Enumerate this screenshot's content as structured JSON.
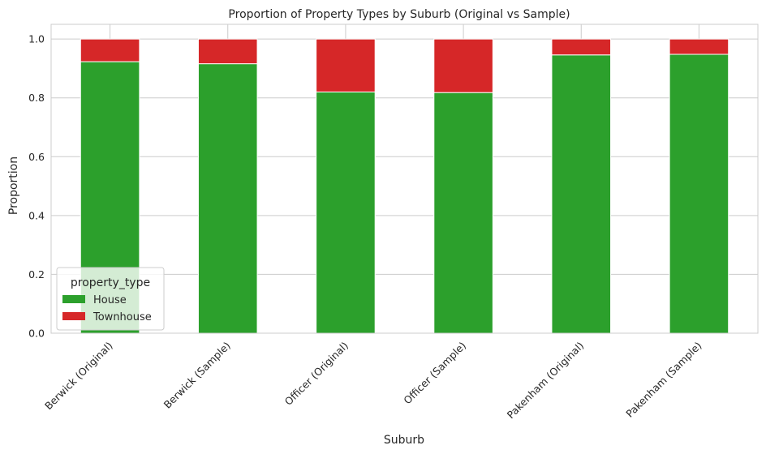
{
  "chart_data": {
    "type": "bar",
    "stacked": true,
    "title": "Proportion of Property Types by Suburb (Original vs Sample)",
    "xlabel": "Suburb",
    "ylabel": "Proportion",
    "ylim": [
      0,
      1.05
    ],
    "yticks": [
      "0.0",
      "0.2",
      "0.4",
      "0.6",
      "0.8",
      "1.0"
    ],
    "grid": true,
    "legend_placement": "lower-left",
    "legend_title": "property_type",
    "categories": [
      "Berwick (Original)",
      "Berwick (Sample)",
      "Officer (Original)",
      "Officer (Sample)",
      "Pakenham (Original)",
      "Pakenham (Sample)"
    ],
    "series": [
      {
        "name": "House",
        "color": "#2ca02c",
        "values": [
          0.923,
          0.916,
          0.82,
          0.818,
          0.946,
          0.948
        ]
      },
      {
        "name": "Townhouse",
        "color": "#d62728",
        "values": [
          0.077,
          0.084,
          0.18,
          0.182,
          0.054,
          0.052
        ]
      }
    ]
  }
}
